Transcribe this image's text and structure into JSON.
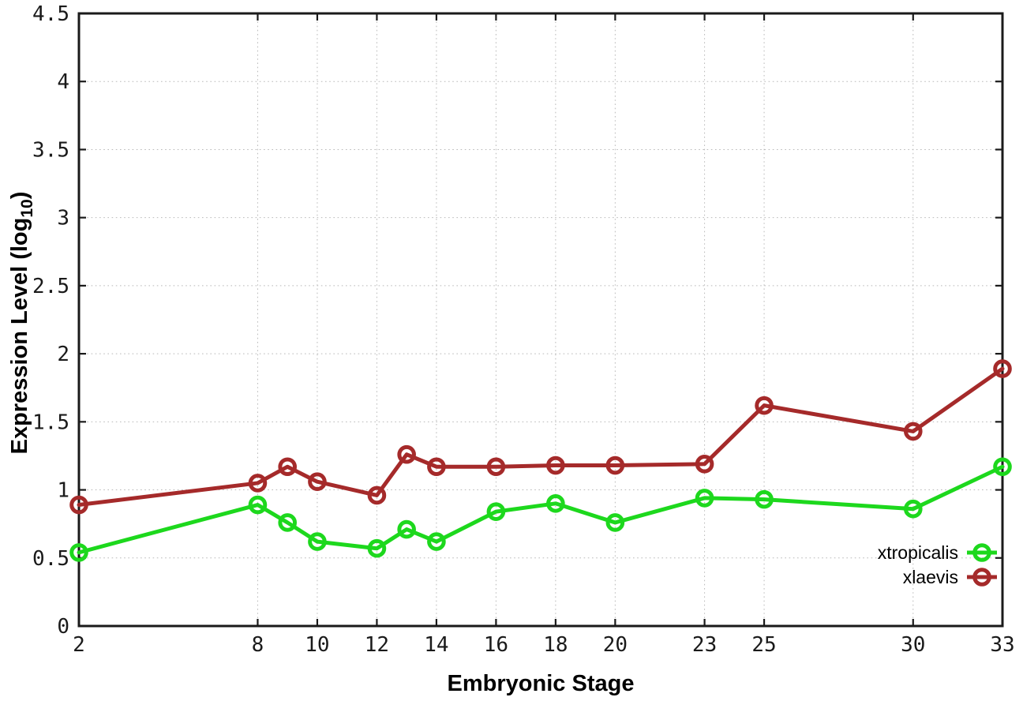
{
  "labels": {
    "xlabel": "Embryonic Stage",
    "ylabel_prefix": "Expression Level (log",
    "ylabel_subscript": "10",
    "ylabel_suffix": ")"
  },
  "chart_data": {
    "type": "line",
    "title": "",
    "xlabel": "Embryonic Stage",
    "ylabel": "Expression Level (log10)",
    "xlim": [
      2,
      33
    ],
    "ylim": [
      0,
      4.5
    ],
    "grid": true,
    "grid_style": "dotted",
    "legend_position": "inside-bottom-right",
    "xticks": [
      2,
      8,
      10,
      12,
      14,
      16,
      18,
      20,
      23,
      25,
      30,
      33
    ],
    "yticks": [
      0,
      0.5,
      1,
      1.5,
      2,
      2.5,
      3,
      3.5,
      4,
      4.5
    ],
    "x": [
      2,
      8,
      9,
      10,
      12,
      13,
      14,
      16,
      18,
      20,
      23,
      25,
      30,
      33
    ],
    "series": [
      {
        "name": "xtropicalis",
        "color": "#1dd81d",
        "marker": "open-circle",
        "values": [
          0.54,
          0.89,
          0.76,
          0.62,
          0.57,
          0.71,
          0.62,
          0.84,
          0.9,
          0.76,
          0.94,
          0.93,
          0.86,
          1.17
        ]
      },
      {
        "name": "xlaevis",
        "color": "#a52a2a",
        "marker": "open-circle",
        "values": [
          0.89,
          1.05,
          1.17,
          1.06,
          0.96,
          1.26,
          1.17,
          1.17,
          1.18,
          1.18,
          1.19,
          1.62,
          1.43,
          1.89
        ]
      }
    ]
  }
}
